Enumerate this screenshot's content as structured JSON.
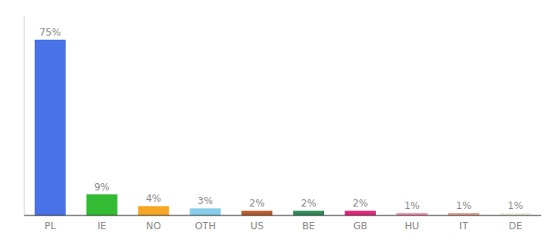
{
  "chart_data": {
    "type": "bar",
    "categories": [
      "PL",
      "IE",
      "NO",
      "OTH",
      "US",
      "BE",
      "GB",
      "HU",
      "IT",
      "DE"
    ],
    "values": [
      75,
      9,
      4,
      3,
      2,
      2,
      2,
      1,
      1,
      1
    ],
    "value_labels": [
      "75%",
      "9%",
      "4%",
      "3%",
      "2%",
      "2%",
      "2%",
      "1%",
      "1%",
      "1%"
    ],
    "colors": [
      "#4a72e8",
      "#33bb33",
      "#f5a623",
      "#87ceeb",
      "#b85c2a",
      "#2e8b57",
      "#e0267a",
      "#f48fb1",
      "#e8a090",
      "#f0eedc"
    ],
    "ylim": [
      0,
      85
    ],
    "data_labels": true,
    "tick_labels": "x",
    "grid": false
  }
}
